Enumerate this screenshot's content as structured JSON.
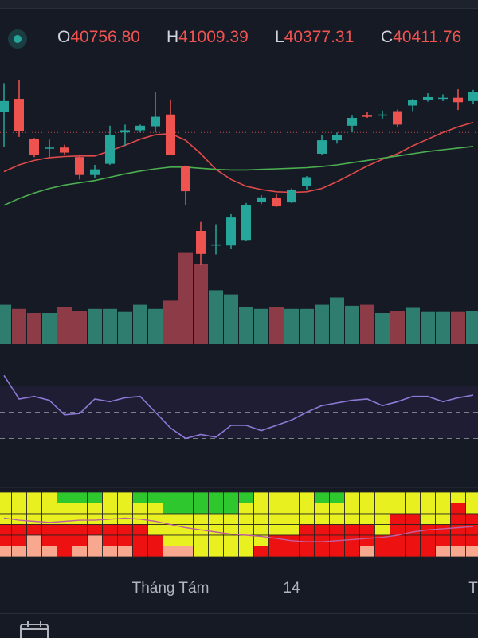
{
  "ohlc": {
    "open_key": "O",
    "open_value": "40756.80",
    "high_key": "H",
    "high_value": "41009.39",
    "low_key": "L",
    "low_value": "40377.31",
    "close_key": "C",
    "close_value": "40411.76"
  },
  "toolbar": {
    "status_icon": "live-status-dot",
    "calendar_icon": "calendar-icon"
  },
  "colors": {
    "up": "#26a69a",
    "down": "#ef5350",
    "up_volume": "#2f7d6f",
    "down_volume": "#8d3b46",
    "ma_fast": "#e04a4a",
    "ma_slow": "#4caf50",
    "rsi": "#8d79d6",
    "background": "#161a25"
  },
  "chart_data": [
    {
      "type": "candlestick",
      "title": "",
      "candles": [
        {
          "o": 40880,
          "h": 41140,
          "l": 40570,
          "c": 40980
        },
        {
          "o": 41000,
          "h": 41170,
          "l": 40660,
          "c": 40710
        },
        {
          "o": 40640,
          "h": 40650,
          "l": 40480,
          "c": 40500
        },
        {
          "o": 40555,
          "h": 40635,
          "l": 40480,
          "c": 40565
        },
        {
          "o": 40565,
          "h": 40590,
          "l": 40500,
          "c": 40520
        },
        {
          "o": 40480,
          "h": 40485,
          "l": 40280,
          "c": 40320
        },
        {
          "o": 40320,
          "h": 40410,
          "l": 40290,
          "c": 40370
        },
        {
          "o": 40420,
          "h": 40760,
          "l": 40410,
          "c": 40680
        },
        {
          "o": 40700,
          "h": 40770,
          "l": 40580,
          "c": 40720
        },
        {
          "o": 40720,
          "h": 40770,
          "l": 40700,
          "c": 40760
        },
        {
          "o": 40755,
          "h": 41060,
          "l": 40700,
          "c": 40840
        },
        {
          "o": 40860,
          "h": 40995,
          "l": 40500,
          "c": 40500
        },
        {
          "o": 40400,
          "h": 40405,
          "l": 40050,
          "c": 40175
        },
        {
          "o": 39820,
          "h": 39900,
          "l": 39515,
          "c": 39615
        },
        {
          "o": 39690,
          "h": 39880,
          "l": 39610,
          "c": 39700
        },
        {
          "o": 39690,
          "h": 39970,
          "l": 39660,
          "c": 39940
        },
        {
          "o": 39740,
          "h": 40070,
          "l": 39730,
          "c": 40050
        },
        {
          "o": 40080,
          "h": 40140,
          "l": 40060,
          "c": 40120
        },
        {
          "o": 40115,
          "h": 40150,
          "l": 40035,
          "c": 40040
        },
        {
          "o": 40075,
          "h": 40200,
          "l": 40070,
          "c": 40190
        },
        {
          "o": 40220,
          "h": 40310,
          "l": 40190,
          "c": 40300
        },
        {
          "o": 40510,
          "h": 40680,
          "l": 40500,
          "c": 40630
        },
        {
          "o": 40630,
          "h": 40700,
          "l": 40600,
          "c": 40680
        },
        {
          "o": 40760,
          "h": 40850,
          "l": 40700,
          "c": 40830
        },
        {
          "o": 40850,
          "h": 40880,
          "l": 40830,
          "c": 40840
        },
        {
          "o": 40855,
          "h": 40895,
          "l": 40820,
          "c": 40860
        },
        {
          "o": 40890,
          "h": 40905,
          "l": 40750,
          "c": 40770
        },
        {
          "o": 40940,
          "h": 41000,
          "l": 40890,
          "c": 40990
        },
        {
          "o": 40990,
          "h": 41050,
          "l": 40975,
          "c": 41015
        },
        {
          "o": 41005,
          "h": 41040,
          "l": 40980,
          "c": 41010
        },
        {
          "o": 41010,
          "h": 41085,
          "l": 40900,
          "c": 40970
        },
        {
          "o": 40980,
          "h": 41080,
          "l": 40950,
          "c": 41060
        }
      ],
      "volume": [
        38,
        34,
        30,
        30,
        36,
        32,
        34,
        34,
        31,
        38,
        34,
        42,
        88,
        77,
        52,
        48,
        36,
        34,
        36,
        34,
        34,
        38,
        45,
        37,
        38,
        30,
        32,
        35,
        31,
        31,
        31,
        32
      ],
      "moving_averages": [
        {
          "values": [
            40350,
            40410,
            40450,
            40475,
            40485,
            40490,
            40490,
            40535,
            40585,
            40640,
            40680,
            40690,
            40630,
            40510,
            40370,
            40280,
            40220,
            40190,
            40170,
            40165,
            40170,
            40200,
            40260,
            40330,
            40400,
            40460,
            40510,
            40580,
            40640,
            40700,
            40750,
            40790
          ]
        },
        {
          "values": [
            40050,
            40110,
            40160,
            40200,
            40230,
            40250,
            40270,
            40300,
            40330,
            40355,
            40375,
            40390,
            40390,
            40380,
            40370,
            40365,
            40365,
            40370,
            40375,
            40380,
            40385,
            40395,
            40410,
            40430,
            40450,
            40470,
            40490,
            40510,
            40530,
            40545,
            40560,
            40575
          ]
        }
      ],
      "reference_price": 40700
    },
    {
      "type": "line",
      "title": "",
      "levels": [
        70,
        50,
        30
      ],
      "values": [
        78,
        60,
        62,
        59,
        48,
        49,
        60,
        58,
        61,
        62,
        50,
        38,
        30,
        33,
        31,
        40,
        40,
        36,
        40,
        44,
        50,
        55,
        57,
        59,
        60,
        55,
        58,
        62,
        62,
        58,
        61,
        63
      ]
    },
    {
      "type": "heatmap",
      "title": "",
      "rows": 6,
      "column_bands": [
        [
          "y",
          "y",
          "y",
          "r",
          "r",
          "s"
        ],
        [
          "y",
          "y",
          "y",
          "r",
          "r",
          "s"
        ],
        [
          "y",
          "y",
          "y",
          "r",
          "s",
          "s"
        ],
        [
          "y",
          "y",
          "y",
          "r",
          "r",
          "s"
        ],
        [
          "g",
          "y",
          "y",
          "r",
          "r",
          "r"
        ],
        [
          "g",
          "y",
          "y",
          "r",
          "r",
          "s"
        ],
        [
          "g",
          "y",
          "y",
          "r",
          "s",
          "s"
        ],
        [
          "y",
          "y",
          "y",
          "r",
          "r",
          "s"
        ],
        [
          "y",
          "y",
          "y",
          "r",
          "r",
          "s"
        ],
        [
          "g",
          "y",
          "y",
          "r",
          "r",
          "r"
        ],
        [
          "g",
          "y",
          "y",
          "y",
          "r",
          "r"
        ],
        [
          "g",
          "g",
          "y",
          "y",
          "y",
          "s"
        ],
        [
          "g",
          "g",
          "y",
          "y",
          "y",
          "s"
        ],
        [
          "g",
          "g",
          "y",
          "y",
          "y",
          "y"
        ],
        [
          "g",
          "g",
          "y",
          "y",
          "y",
          "y"
        ],
        [
          "g",
          "g",
          "y",
          "y",
          "y",
          "y"
        ],
        [
          "g",
          "y",
          "y",
          "y",
          "y",
          "y"
        ],
        [
          "y",
          "y",
          "y",
          "y",
          "y",
          "r"
        ],
        [
          "y",
          "y",
          "y",
          "y",
          "r",
          "r"
        ],
        [
          "y",
          "y",
          "y",
          "y",
          "r",
          "r"
        ],
        [
          "y",
          "y",
          "y",
          "r",
          "r",
          "r"
        ],
        [
          "g",
          "y",
          "y",
          "r",
          "r",
          "r"
        ],
        [
          "g",
          "y",
          "y",
          "r",
          "r",
          "r"
        ],
        [
          "y",
          "y",
          "y",
          "r",
          "r",
          "r"
        ],
        [
          "y",
          "y",
          "y",
          "r",
          "r",
          "s"
        ],
        [
          "y",
          "y",
          "y",
          "y",
          "r",
          "r"
        ],
        [
          "y",
          "y",
          "r",
          "r",
          "r",
          "r"
        ],
        [
          "y",
          "y",
          "r",
          "r",
          "r",
          "r"
        ],
        [
          "y",
          "y",
          "y",
          "r",
          "r",
          "r"
        ],
        [
          "y",
          "y",
          "y",
          "r",
          "r",
          "s"
        ],
        [
          "y",
          "r",
          "r",
          "r",
          "r",
          "s"
        ],
        [
          "y",
          "y",
          "r",
          "r",
          "r",
          "s"
        ]
      ]
    }
  ],
  "x_axis": {
    "labels": [
      {
        "text": "Tháng Tám",
        "index": 11
      },
      {
        "text": "14",
        "index": 19
      },
      {
        "text": "T",
        "index": 31
      }
    ]
  }
}
